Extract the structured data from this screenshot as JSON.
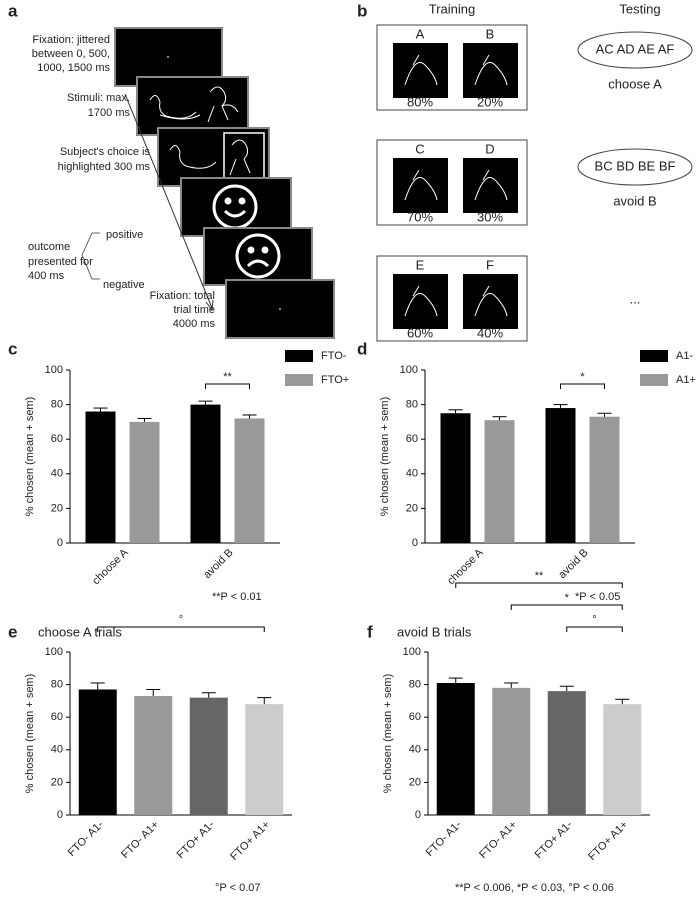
{
  "panel_a": {
    "label": "a",
    "fixation": [
      "Fixation: jittered",
      "between 0, 500,",
      "1000, 1500 ms"
    ],
    "stimuli": [
      "Stimuli: max.",
      "1700 ms"
    ],
    "choice": [
      "Subject's choice is",
      "highlighted 300 ms"
    ],
    "outcome": [
      "outcome",
      "presented for",
      "400 ms"
    ],
    "positive": "positive",
    "negative": "negative",
    "fixation_total": [
      "Fixation: total",
      "trial time",
      "4000 ms"
    ]
  },
  "panel_b": {
    "label": "b",
    "training": "Training",
    "testing": "Testing",
    "pairs": [
      [
        {
          "letter": "A",
          "prob": "80%"
        },
        {
          "letter": "B",
          "prob": "20%"
        }
      ],
      [
        {
          "letter": "C",
          "prob": "70%"
        },
        {
          "letter": "D",
          "prob": "30%"
        }
      ],
      [
        {
          "letter": "E",
          "prob": "60%"
        },
        {
          "letter": "F",
          "prob": "40%"
        }
      ]
    ],
    "tests": [
      {
        "pairs": "AC AD AE AF",
        "rule": "choose A"
      },
      {
        "pairs": "BC BD BE BF",
        "rule": "avoid B"
      }
    ],
    "more": "..."
  },
  "chart_data": [
    {
      "type": "bar",
      "label": "c",
      "y_label": "% chosen (mean + sem)",
      "categories": [
        "choose A",
        "avoid B"
      ],
      "series": [
        {
          "name": "FTO-",
          "color": "#000000",
          "values": [
            76,
            80
          ],
          "errors": [
            2,
            2
          ]
        },
        {
          "name": "FTO+",
          "color": "#999999",
          "values": [
            70,
            72
          ],
          "errors": [
            2,
            2
          ]
        }
      ],
      "ylim": [
        0,
        100
      ],
      "yticks": [
        0,
        20,
        40,
        60,
        80,
        100
      ],
      "brackets": [
        {
          "label": "**",
          "from": 2,
          "to": 3
        }
      ],
      "note": "**P < 0.01"
    },
    {
      "type": "bar",
      "label": "d",
      "y_label": "% chosen (mean + sem)",
      "categories": [
        "choose A",
        "avoid B"
      ],
      "series": [
        {
          "name": "A1-",
          "color": "#000000",
          "values": [
            75,
            78
          ],
          "errors": [
            2,
            2
          ]
        },
        {
          "name": "A1+",
          "color": "#999999",
          "values": [
            71,
            73
          ],
          "errors": [
            2,
            2
          ]
        }
      ],
      "ylim": [
        0,
        100
      ],
      "yticks": [
        0,
        20,
        40,
        60,
        80,
        100
      ],
      "brackets": [
        {
          "label": "*",
          "from": 2,
          "to": 3
        }
      ],
      "note": "*P < 0.05"
    },
    {
      "type": "bar",
      "label": "e",
      "title": "choose A trials",
      "y_label": "% chosen (mean + sem)",
      "categories": [
        "FTO- A1-",
        "FTO- A1+",
        "FTO+ A1-",
        "FTO+ A1+"
      ],
      "series": [
        {
          "colors": [
            "#000000",
            "#999999",
            "#666666",
            "#cccccc"
          ],
          "values": [
            77,
            73,
            72,
            68
          ],
          "errors": [
            4,
            4,
            3,
            4
          ]
        }
      ],
      "ylim": [
        0,
        100
      ],
      "yticks": [
        0,
        20,
        40,
        60,
        80,
        100
      ],
      "brackets": [
        {
          "label": "°",
          "from": 0,
          "to": 3
        }
      ],
      "note": "°P < 0.07"
    },
    {
      "type": "bar",
      "label": "f",
      "title": "avoid B trials",
      "y_label": "% chosen (mean + sem)",
      "categories": [
        "FTO- A1-",
        "FTO- A1+",
        "FTO+ A1-",
        "FTO+ A1+"
      ],
      "series": [
        {
          "colors": [
            "#000000",
            "#999999",
            "#666666",
            "#cccccc"
          ],
          "values": [
            81,
            78,
            76,
            68
          ],
          "errors": [
            3,
            3,
            3,
            3
          ]
        }
      ],
      "ylim": [
        0,
        100
      ],
      "yticks": [
        0,
        20,
        40,
        60,
        80,
        100
      ],
      "brackets": [
        {
          "label": "**",
          "from": 0,
          "to": 3
        },
        {
          "label": "*",
          "from": 1,
          "to": 3
        },
        {
          "label": "°",
          "from": 2,
          "to": 3
        }
      ],
      "note": "**P < 0.006, *P < 0.03, °P < 0.06"
    }
  ]
}
